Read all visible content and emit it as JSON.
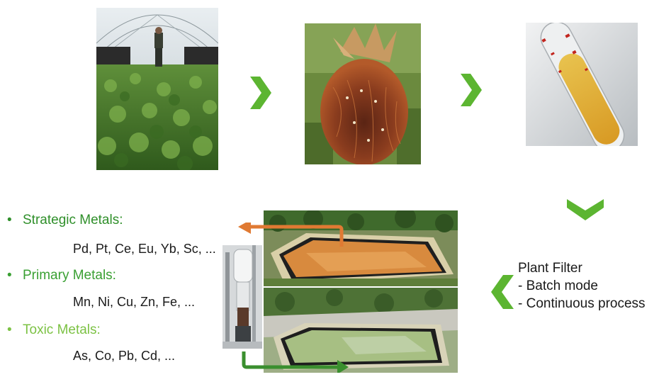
{
  "colors": {
    "chevron": "#5cb531",
    "strategic": "#2f8f2a",
    "primary": "#3aa033",
    "toxic": "#7cc244",
    "arrow_orange": "#e07a33",
    "arrow_green": "#3a8f2e"
  },
  "icons": {
    "chevron_right": "chevron-right-icon",
    "chevron_down": "chevron-down-icon",
    "chevron_left": "chevron-left-icon"
  },
  "metals": [
    {
      "heading": "Strategic Metals:",
      "list": "Pd, Pt, Ce, Eu, Yb, Sc, ..."
    },
    {
      "heading": "Primary Metals:",
      "list": "Mn, Ni, Cu, Zn, Fe, ..."
    },
    {
      "heading": "Toxic Metals:",
      "list": "As, Co, Pb, Cd, ..."
    }
  ],
  "plant_filter": {
    "title": "Plant Filter",
    "lines": [
      "- Batch mode",
      "- Continuous process"
    ]
  }
}
